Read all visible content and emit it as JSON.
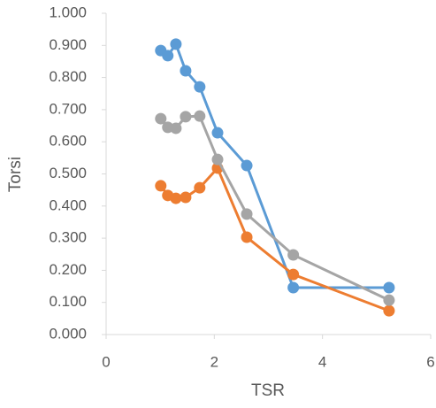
{
  "chart_data": {
    "type": "scatter-line",
    "x_label": "TSR",
    "y_label": "Torsi",
    "xlim": [
      0,
      6
    ],
    "xticks": [
      0,
      2,
      4,
      6
    ],
    "ylim": [
      0,
      1
    ],
    "yticks": [
      {
        "value": 0,
        "label": "0.000"
      },
      {
        "value": 0.1,
        "label": "0.100"
      },
      {
        "value": 0.2,
        "label": "0.200"
      },
      {
        "value": 0.3,
        "label": "0.300"
      },
      {
        "value": 0.4,
        "label": "0.400"
      },
      {
        "value": 0.5,
        "label": "0.500"
      },
      {
        "value": 0.6,
        "label": "0.600"
      },
      {
        "value": 0.7,
        "label": "0.700"
      },
      {
        "value": 0.8,
        "label": "0.800"
      },
      {
        "value": 0.9,
        "label": "0.900"
      },
      {
        "value": 1,
        "label": "1.000"
      }
    ],
    "grid": false,
    "series": [
      {
        "color": "#5b9bd5",
        "x": [
          1.01,
          1.14,
          1.29,
          1.47,
          1.73,
          2.06,
          2.6,
          3.46,
          5.23
        ],
        "values": [
          0.884,
          0.868,
          0.904,
          0.821,
          0.771,
          0.628,
          0.526,
          0.146,
          0.146
        ]
      },
      {
        "color": "#ed7d31",
        "x": [
          1.01,
          1.14,
          1.29,
          1.47,
          1.73,
          2.06,
          2.6,
          3.46,
          5.23
        ],
        "values": [
          0.463,
          0.433,
          0.424,
          0.427,
          0.457,
          0.518,
          0.303,
          0.187,
          0.074
        ]
      },
      {
        "color": "#a5a5a5",
        "x": [
          1.01,
          1.14,
          1.29,
          1.47,
          1.73,
          2.06,
          2.6,
          3.46,
          5.23
        ],
        "values": [
          0.672,
          0.645,
          0.642,
          0.678,
          0.68,
          0.545,
          0.375,
          0.248,
          0.107
        ]
      }
    ]
  }
}
